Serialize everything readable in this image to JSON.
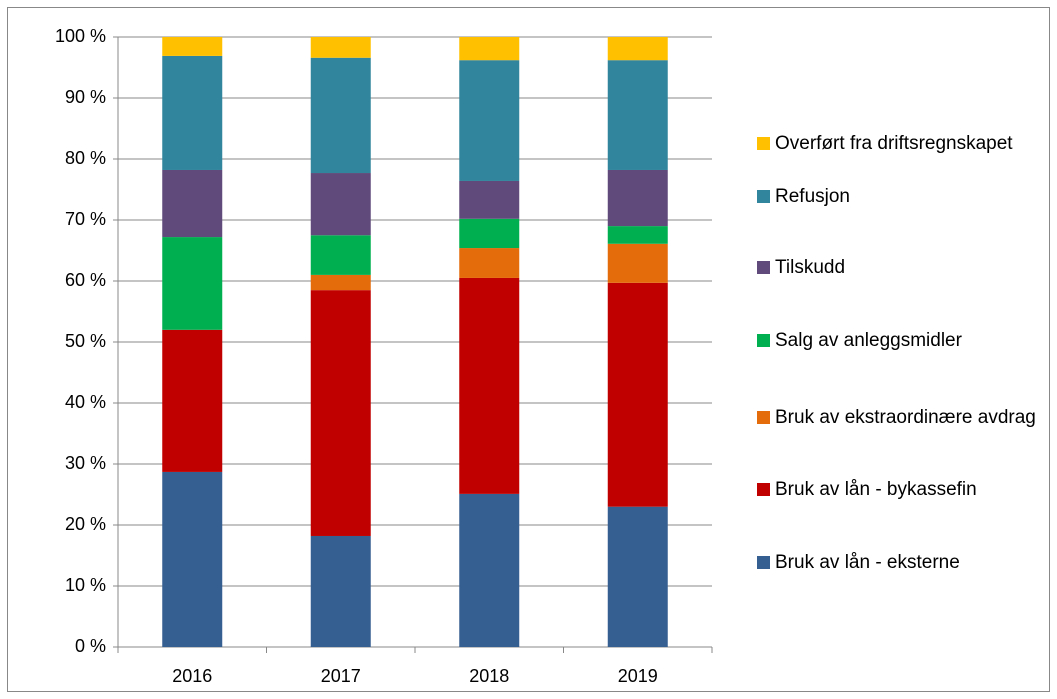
{
  "chart_data": {
    "type": "stacked_bar",
    "categories": [
      "2016",
      "2017",
      "2018",
      "2019"
    ],
    "series": [
      {
        "name": "Bruk av lån - eksterne",
        "color": "#365f91",
        "values": [
          28.7,
          18.2,
          25.1,
          23.0
        ]
      },
      {
        "name": "Bruk av lån - bykassefin",
        "color": "#c00000",
        "values": [
          23.3,
          40.3,
          35.4,
          36.7
        ]
      },
      {
        "name": "Bruk av ekstraordinære avdrag",
        "color": "#e46c0a",
        "values": [
          0,
          2.5,
          4.9,
          6.4
        ]
      },
      {
        "name": "Salg av anleggsmidler",
        "color": "#00b050",
        "values": [
          15.2,
          6.5,
          4.8,
          2.9
        ]
      },
      {
        "name": "Tilskudd",
        "color": "#604a7b",
        "values": [
          11.0,
          10.2,
          6.2,
          9.2
        ]
      },
      {
        "name": "Refusjon",
        "color": "#31859c",
        "values": [
          18.7,
          18.9,
          19.8,
          18.0
        ]
      },
      {
        "name": "Overført fra driftsregnskapet",
        "color": "#ffc000",
        "values": [
          3.1,
          3.4,
          3.8,
          3.8
        ]
      }
    ],
    "ylim": [
      0,
      100
    ],
    "yticks": [
      {
        "value": 0,
        "label": "0 %"
      },
      {
        "value": 10,
        "label": "10 %"
      },
      {
        "value": 20,
        "label": "20 %"
      },
      {
        "value": 30,
        "label": "30 %"
      },
      {
        "value": 40,
        "label": "40 %"
      },
      {
        "value": 50,
        "label": "50 %"
      },
      {
        "value": 60,
        "label": "60 %"
      },
      {
        "value": 70,
        "label": "70 %"
      },
      {
        "value": 80,
        "label": "80 %"
      },
      {
        "value": 90,
        "label": "90 %"
      },
      {
        "value": 100,
        "label": "100 %"
      }
    ],
    "grid": true,
    "legend": "right"
  }
}
